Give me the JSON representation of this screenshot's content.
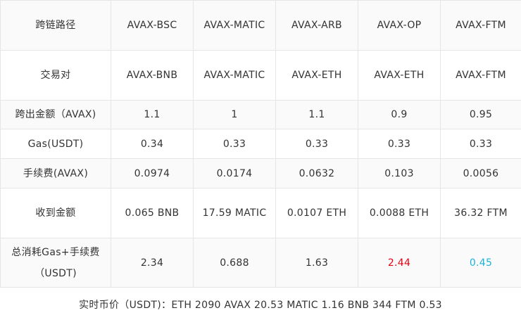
{
  "table": {
    "rows": [
      {
        "label": "跨链路径",
        "cells": [
          "AVAX-BSC",
          "AVAX-MATIC",
          "AVAX-ARB",
          "AVAX-OP",
          "AVAX-FTM"
        ]
      },
      {
        "label": "交易对",
        "cells": [
          "AVAX-BNB",
          "AVAX-MATIC",
          "AVAX-ETH",
          "AVAX-ETH",
          "AVAX-FTM"
        ]
      },
      {
        "label": "跨出金额（AVAX)",
        "cells": [
          "1.1",
          "1",
          "1.1",
          "0.9",
          "0.95"
        ]
      },
      {
        "label": "Gas(USDT)",
        "cells": [
          "0.34",
          "0.33",
          "0.33",
          "0.33",
          "0.33"
        ]
      },
      {
        "label": "手续费(AVAX)",
        "cells": [
          "0.0974",
          "0.0174",
          "0.0632",
          "0.103",
          "0.0056"
        ]
      },
      {
        "label": "收到金额",
        "cells": [
          "0.065 BNB",
          "17.59 MATIC",
          "0.0107 ETH",
          "0.0088 ETH",
          "36.32 FTM"
        ]
      },
      {
        "label": "总消耗Gas+手续费（USDT)",
        "cells": [
          "2.34",
          "0.688",
          "1.63",
          "2.44",
          "0.45"
        ]
      }
    ],
    "highlight_colors": {
      "max_total": "#e60012",
      "min_total": "#1ab4d9"
    }
  },
  "footer": {
    "realtime_prices": "实时币价（USDT)：ETH 2090 AVAX 20.53 MATIC 1.16 BNB 344 FTM 0.53"
  }
}
